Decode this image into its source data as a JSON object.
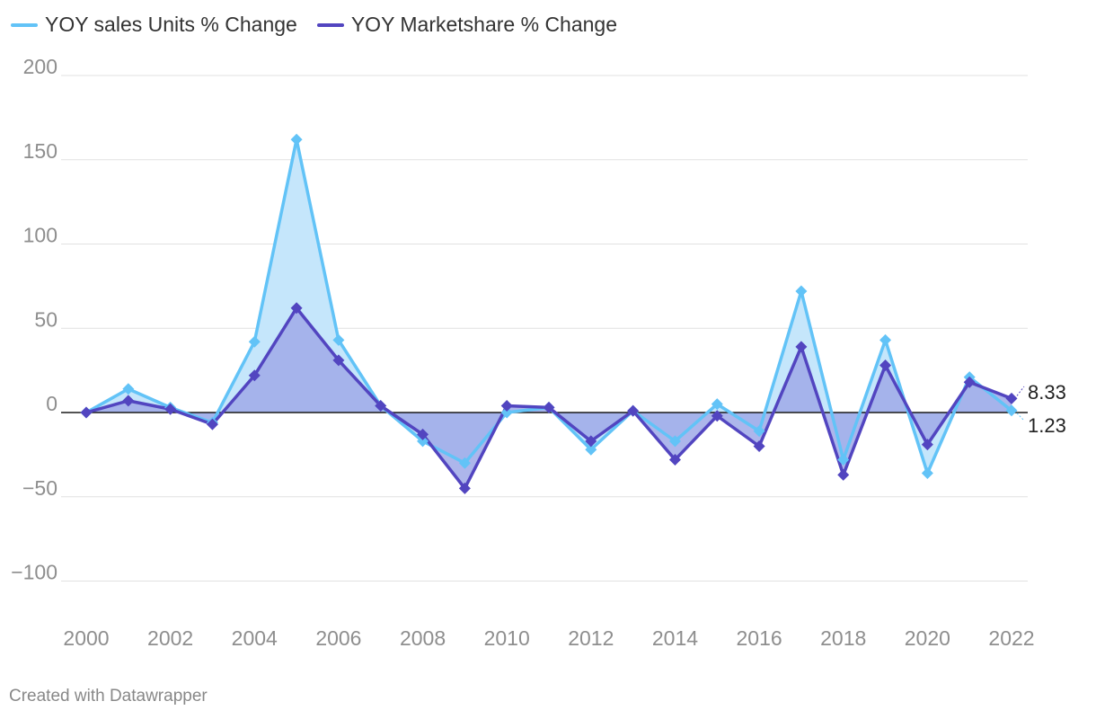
{
  "chart_data": {
    "type": "area",
    "title": "",
    "xlabel": "",
    "ylabel": "",
    "x": [
      2000,
      2001,
      2002,
      2003,
      2004,
      2005,
      2006,
      2007,
      2008,
      2009,
      2010,
      2011,
      2012,
      2013,
      2014,
      2015,
      2016,
      2017,
      2018,
      2019,
      2020,
      2021,
      2022
    ],
    "xticks": [
      "2000",
      "2002",
      "2004",
      "2006",
      "2008",
      "2010",
      "2012",
      "2014",
      "2016",
      "2018",
      "2020",
      "2022"
    ],
    "ylim": [
      -120,
      200
    ],
    "yticks": [
      "200",
      "150",
      "100",
      "50",
      "0",
      "−50",
      "−100"
    ],
    "grid": true,
    "legend_position": "top-left",
    "series": [
      {
        "name": "YOY sales Units % Change",
        "color": "#62c3f7",
        "fill": "#c5e6fb",
        "values": [
          0,
          14,
          3,
          -6,
          42,
          162,
          43,
          4,
          -17,
          -30,
          0,
          3,
          -22,
          1,
          -17,
          5,
          -11,
          72,
          -28,
          43,
          -36,
          21,
          1.23
        ]
      },
      {
        "name": "YOY Marketshare % Change",
        "color": "#5245c0",
        "fill": "#9fa9e7",
        "values": [
          0,
          7,
          2,
          -7,
          22,
          62,
          31,
          4,
          -13,
          -45,
          4,
          3,
          -17,
          1,
          -28,
          -2,
          -20,
          39,
          -37,
          28,
          -19,
          18,
          8.33
        ]
      }
    ],
    "end_labels": [
      "8.33",
      "1.23"
    ]
  },
  "footer": "Created with Datawrapper"
}
